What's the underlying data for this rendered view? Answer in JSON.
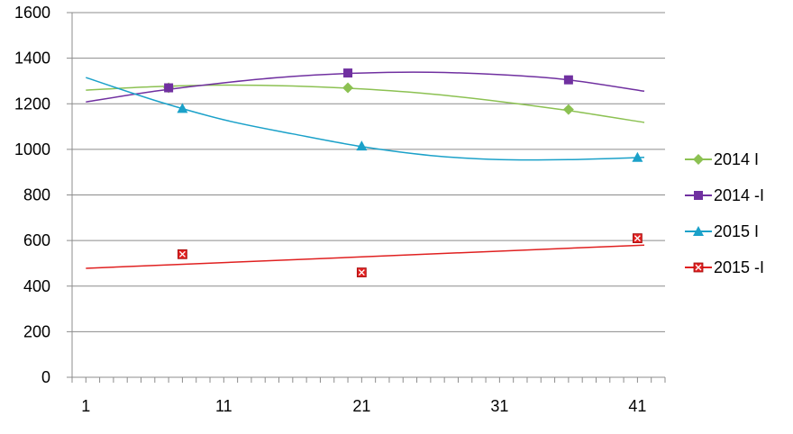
{
  "chart_data": {
    "type": "scatter",
    "xlabel": "",
    "ylabel": "",
    "xlim": [
      0,
      43
    ],
    "ylim": [
      0,
      1600
    ],
    "x_ticks": [
      1,
      11,
      21,
      31,
      41
    ],
    "x_tick_labels": [
      "1",
      "11",
      "21",
      "31",
      "41"
    ],
    "y_ticks": [
      0,
      200,
      400,
      600,
      800,
      1000,
      1200,
      1400,
      1600
    ],
    "y_tick_labels": [
      "0",
      "200",
      "400",
      "600",
      "800",
      "1000",
      "1200",
      "1400",
      "1600"
    ],
    "grid": "horizontal",
    "legend_position": "right",
    "series": [
      {
        "name": "2014 I",
        "color": "#8cc152",
        "marker": "diamond",
        "x": [
          7,
          20,
          36
        ],
        "y": [
          1270,
          1270,
          1175
        ],
        "trendline": "polynomial",
        "trend_x": [
          1,
          6,
          11,
          16,
          21,
          26,
          31,
          36,
          41.5
        ],
        "trend_y": [
          1260,
          1275,
          1282,
          1278,
          1265,
          1243,
          1210,
          1170,
          1118
        ]
      },
      {
        "name": "2014 -I",
        "color": "#7030a0",
        "marker": "square",
        "x": [
          7,
          20,
          36
        ],
        "y": [
          1270,
          1335,
          1305
        ],
        "trendline": "polynomial",
        "trend_x": [
          1,
          6,
          11,
          16,
          21,
          26,
          31,
          36,
          41.5
        ],
        "trend_y": [
          1208,
          1255,
          1292,
          1320,
          1335,
          1338,
          1328,
          1305,
          1255
        ]
      },
      {
        "name": "2015 I",
        "color": "#1ba1c9",
        "marker": "triangle",
        "x": [
          8,
          21,
          41
        ],
        "y": [
          1180,
          1015,
          965
        ],
        "trendline": "polynomial",
        "trend_x": [
          1,
          6,
          11,
          16,
          21,
          26,
          31,
          36,
          41.5
        ],
        "trend_y": [
          1315,
          1215,
          1130,
          1068,
          1012,
          973,
          955,
          955,
          965
        ]
      },
      {
        "name": "2015 -I",
        "color": "#e02020",
        "marker": "x-square",
        "x": [
          8,
          21,
          41
        ],
        "y": [
          540,
          460,
          610
        ],
        "trendline": "linear",
        "trend_x": [
          1,
          41.5
        ],
        "trend_y": [
          478,
          580
        ]
      }
    ]
  }
}
